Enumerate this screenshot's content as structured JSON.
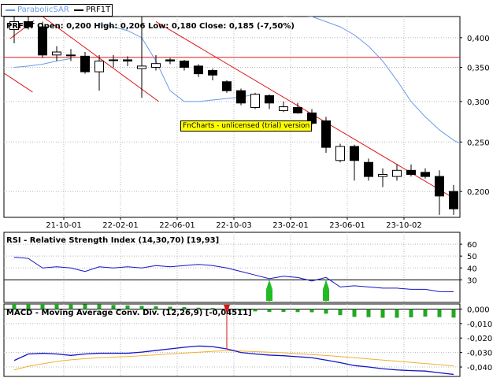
{
  "legend": [
    {
      "name": "ParabolicSAR",
      "color": "#6a9be8"
    },
    {
      "name": "PRF1T",
      "color": "#000000"
    }
  ],
  "colors": {
    "sar": "#6a9be8",
    "trendline": "#e01818",
    "rsi": "#1515c8",
    "macd": "#1515c8",
    "signal": "#f0b030",
    "histogram": "#22a822",
    "marker_up": "#22bb22",
    "marker_down": "#dd1111",
    "watermark_bg": "#ffff00"
  },
  "watermark": "FnCharts - unlicensed (trial) version",
  "chart_data": [
    {
      "type": "candlestick",
      "title": "PRF1T Open: 0,200  High: 0,206  Low: 0,180  Close: 0,185  (-7,50%)",
      "ylim": [
        0.178,
        0.44
      ],
      "y_scale": "log",
      "y_ticks": [
        0.2,
        0.25,
        0.3,
        0.35,
        0.4
      ],
      "y_tick_labels": [
        "0,200",
        "0,250",
        "0,300",
        "0,350",
        "0,400"
      ],
      "x_tick_labels": [
        {
          "index": 3.5,
          "label": "21-10-01"
        },
        {
          "index": 7.5,
          "label": "22-02-01"
        },
        {
          "index": 11.5,
          "label": "22-06-01"
        },
        {
          "index": 15.5,
          "label": "22-10-03"
        },
        {
          "index": 19.5,
          "label": "23-02-01"
        },
        {
          "index": 23.5,
          "label": "23-06-01"
        },
        {
          "index": 27.5,
          "label": "23-10-02"
        }
      ],
      "grid": true,
      "candles": [
        {
          "o": 0.415,
          "h": 0.44,
          "l": 0.39,
          "c": 0.43
        },
        {
          "o": 0.43,
          "h": 0.44,
          "l": 0.415,
          "c": 0.42
        },
        {
          "o": 0.42,
          "h": 0.43,
          "l": 0.365,
          "c": 0.37
        },
        {
          "o": 0.37,
          "h": 0.385,
          "l": 0.36,
          "c": 0.375
        },
        {
          "o": 0.37,
          "h": 0.38,
          "l": 0.36,
          "c": 0.37
        },
        {
          "o": 0.368,
          "h": 0.375,
          "l": 0.34,
          "c": 0.343
        },
        {
          "o": 0.343,
          "h": 0.37,
          "l": 0.315,
          "c": 0.36
        },
        {
          "o": 0.362,
          "h": 0.37,
          "l": 0.35,
          "c": 0.362
        },
        {
          "o": 0.362,
          "h": 0.368,
          "l": 0.352,
          "c": 0.36
        },
        {
          "o": 0.348,
          "h": 0.44,
          "l": 0.305,
          "c": 0.352
        },
        {
          "o": 0.35,
          "h": 0.37,
          "l": 0.345,
          "c": 0.356
        },
        {
          "o": 0.362,
          "h": 0.365,
          "l": 0.355,
          "c": 0.36
        },
        {
          "o": 0.36,
          "h": 0.362,
          "l": 0.345,
          "c": 0.35
        },
        {
          "o": 0.352,
          "h": 0.355,
          "l": 0.335,
          "c": 0.34
        },
        {
          "o": 0.345,
          "h": 0.348,
          "l": 0.33,
          "c": 0.338
        },
        {
          "o": 0.328,
          "h": 0.33,
          "l": 0.312,
          "c": 0.315
        },
        {
          "o": 0.315,
          "h": 0.318,
          "l": 0.295,
          "c": 0.298
        },
        {
          "o": 0.292,
          "h": 0.312,
          "l": 0.29,
          "c": 0.31
        },
        {
          "o": 0.308,
          "h": 0.31,
          "l": 0.29,
          "c": 0.298
        },
        {
          "o": 0.288,
          "h": 0.3,
          "l": 0.286,
          "c": 0.293
        },
        {
          "o": 0.292,
          "h": 0.298,
          "l": 0.284,
          "c": 0.285
        },
        {
          "o": 0.285,
          "h": 0.29,
          "l": 0.27,
          "c": 0.272
        },
        {
          "o": 0.275,
          "h": 0.28,
          "l": 0.238,
          "c": 0.244
        },
        {
          "o": 0.23,
          "h": 0.248,
          "l": 0.228,
          "c": 0.245
        },
        {
          "o": 0.245,
          "h": 0.247,
          "l": 0.21,
          "c": 0.23
        },
        {
          "o": 0.228,
          "h": 0.232,
          "l": 0.21,
          "c": 0.214
        },
        {
          "o": 0.214,
          "h": 0.222,
          "l": 0.204,
          "c": 0.216
        },
        {
          "o": 0.214,
          "h": 0.226,
          "l": 0.21,
          "c": 0.22
        },
        {
          "o": 0.22,
          "h": 0.226,
          "l": 0.214,
          "c": 0.216
        },
        {
          "o": 0.218,
          "h": 0.222,
          "l": 0.212,
          "c": 0.214
        },
        {
          "o": 0.214,
          "h": 0.22,
          "l": 0.18,
          "c": 0.196
        },
        {
          "o": 0.2,
          "h": 0.206,
          "l": 0.18,
          "c": 0.185
        }
      ],
      "parabolic_sar": [
        {
          "start": 0,
          "values": [
            0.35,
            0.352,
            0.355,
            0.36,
            0.364
          ]
        },
        {
          "start": 6,
          "values": [
            0.426,
            0.42,
            0.413,
            0.4,
            0.36,
            0.315,
            0.3,
            0.3,
            0.302,
            0.304,
            0.306,
            0.31
          ]
        },
        {
          "start": 19,
          "values": [
            0.44,
            0.442,
            0.44,
            0.43,
            0.42,
            0.405,
            0.385,
            0.36,
            0.33,
            0.3,
            0.28,
            0.264,
            0.252,
            0.244
          ]
        }
      ],
      "trendlines": [
        {
          "from": {
            "x": -1,
            "y": 0.345
          },
          "to": {
            "x": 1.3,
            "y": 0.313
          }
        },
        {
          "from": {
            "x": -0.3,
            "y": 0.398
          },
          "to": {
            "x": 1.4,
            "y": 0.432
          }
        },
        {
          "from": {
            "x": 2.0,
            "y": 0.44
          },
          "to": {
            "x": 10.2,
            "y": 0.3
          }
        },
        {
          "from": {
            "x": 10.0,
            "y": 0.43
          },
          "to": {
            "x": 31.3,
            "y": 0.192
          }
        }
      ],
      "horizontal_lines": [
        0.366
      ]
    },
    {
      "type": "line",
      "title": "RSI - Relative Strength Index (14,30,70) [19,93]",
      "ylim": [
        11,
        70
      ],
      "y_ticks": [
        30,
        40,
        50,
        60
      ],
      "y_tick_labels": [
        "30",
        "40",
        "50",
        "60"
      ],
      "horizontal_lines": [
        30
      ],
      "grid": true,
      "series": [
        {
          "values": [
            49,
            48,
            40,
            41,
            40,
            37,
            41,
            40,
            41,
            40,
            42,
            41,
            42,
            43,
            42,
            40,
            37,
            34,
            31,
            33,
            32,
            29,
            32,
            24,
            25,
            24,
            23,
            23,
            22,
            22,
            20,
            19.93
          ]
        }
      ],
      "signals": [
        {
          "index": 18,
          "value": 30
        },
        {
          "index": 22,
          "value": 30
        }
      ]
    },
    {
      "type": "line",
      "title": "MACD - Moving Average Conv. Div. (12,26,9) [-0,04511]",
      "ylim": [
        -0.0465,
        0.0035
      ],
      "y_ticks": [
        0.0,
        -0.01,
        -0.02,
        -0.03,
        -0.04
      ],
      "y_tick_labels": [
        "0,000",
        "-0,010",
        "-0,020",
        "-0,030",
        "-0,040"
      ],
      "horizontal_lines": [
        0
      ],
      "grid": true,
      "series": [
        {
          "values": [
            -0.0355,
            -0.031,
            -0.0305,
            -0.031,
            -0.032,
            -0.031,
            -0.0305,
            -0.0305,
            -0.0305,
            -0.0297,
            -0.0286,
            -0.0275,
            -0.0264,
            -0.0255,
            -0.026,
            -0.0275,
            -0.03,
            -0.031,
            -0.0318,
            -0.0322,
            -0.0329,
            -0.0336,
            -0.0352,
            -0.037,
            -0.039,
            -0.04,
            -0.0412,
            -0.042,
            -0.0425,
            -0.0428,
            -0.044,
            -0.04511
          ]
        },
        {
          "values": [
            -0.042,
            -0.0395,
            -0.0378,
            -0.0362,
            -0.035,
            -0.0342,
            -0.0336,
            -0.0332,
            -0.0328,
            -0.0322,
            -0.0316,
            -0.031,
            -0.0304,
            -0.0298,
            -0.0292,
            -0.0288,
            -0.029,
            -0.0294,
            -0.0298,
            -0.0302,
            -0.0308,
            -0.0314,
            -0.032,
            -0.0328,
            -0.0336,
            -0.0344,
            -0.0352,
            -0.036,
            -0.0368,
            -0.0376,
            -0.0384,
            -0.0392
          ]
        }
      ],
      "histogram": [
        0.0035,
        0.0035,
        0.0035,
        0.0035,
        0.0035,
        0.0033,
        0.0031,
        0.0028,
        0.0025,
        0.0022,
        0.0019,
        0.0016,
        0.0013,
        0.0009,
        0.0007,
        0.0005,
        -0.001,
        -0.0016,
        -0.002,
        -0.002,
        -0.0021,
        -0.0022,
        -0.0032,
        -0.0042,
        -0.0054,
        -0.0056,
        -0.006,
        -0.006,
        -0.0057,
        -0.0052,
        -0.0056,
        -0.0059
      ],
      "signals": [
        {
          "index": 15,
          "value": 0,
          "direction": "down"
        }
      ]
    }
  ]
}
